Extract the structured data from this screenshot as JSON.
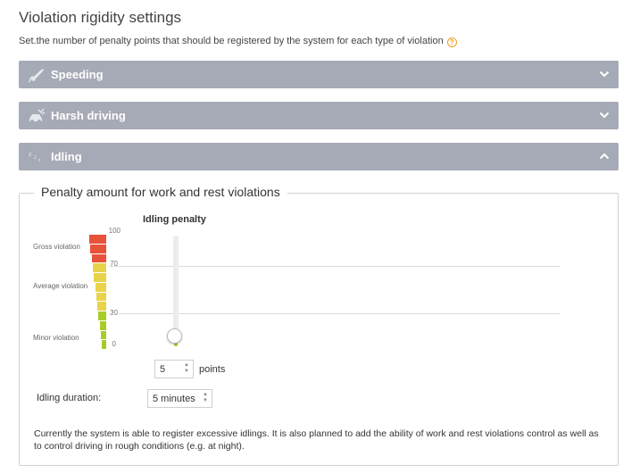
{
  "header": {
    "title": "Violation rigidity settings",
    "subtitle": "Set.the number of penalty points that should be registered by the system for each type of violation",
    "help_glyph": "?"
  },
  "accordions": [
    {
      "label": "Speeding",
      "icon": "rocket-icon",
      "state": "collapsed"
    },
    {
      "label": "Harsh driving",
      "icon": "car-crash-icon",
      "state": "collapsed"
    },
    {
      "label": "Idling",
      "icon": "zzz-icon",
      "state": "expanded"
    }
  ],
  "panel": {
    "legend": "Penalty amount for work and rest violations",
    "scale": {
      "gross_label": "Gross violation",
      "average_label": "Average violation",
      "minor_label": "Minor violation",
      "ticks": [
        "100",
        "70",
        "30",
        "0"
      ]
    },
    "chart_title": "Idling penalty",
    "penalty": {
      "value": "5",
      "unit": "points",
      "slider_fraction": 0.05
    },
    "duration": {
      "label": "Idling duration:",
      "value": "5 minutes"
    },
    "note": "Currently the system is able to register excessive idlings. It is also planned to add the ability of work and rest violations control as well as to control driving in rough conditions (e.g. at night)."
  },
  "colors": {
    "accordion_bg": "#a6aab6",
    "gross": "#e8513a",
    "average": "#e9d34a",
    "minor": "#a7cc28",
    "help": "#f29a1f"
  }
}
